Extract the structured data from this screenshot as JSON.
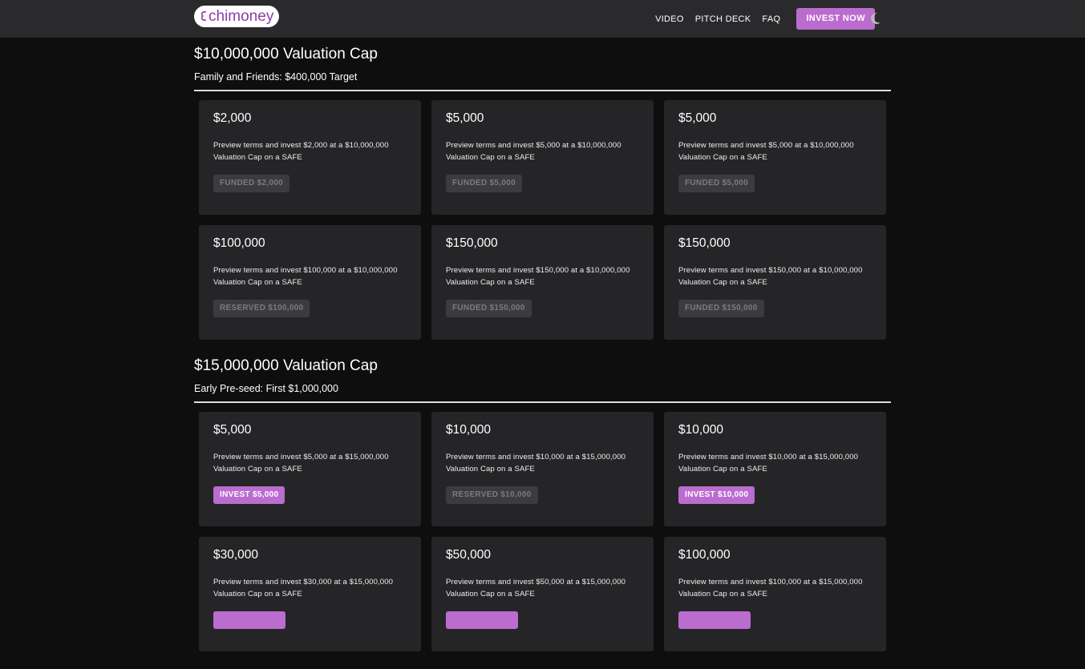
{
  "header": {
    "logo": "chimoney",
    "nav": [
      "VIDEO",
      "PITCH DECK",
      "FAQ"
    ],
    "cta": "INVEST NOW"
  },
  "sections": [
    {
      "title": "$10,000,000 Valuation Cap",
      "subtitle": "Family and Friends: $400,000 Target",
      "cards": [
        {
          "amount": "$2,000",
          "description": "Preview terms and invest $2,000 at a $10,000,000 Valuation Cap on a SAFE",
          "button": "FUNDED $2,000",
          "button_style": "disabled"
        },
        {
          "amount": "$5,000",
          "description": "Preview terms and invest $5,000 at a $10,000,000 Valuation Cap on a SAFE",
          "button": "FUNDED $5,000",
          "button_style": "disabled"
        },
        {
          "amount": "$5,000",
          "description": "Preview terms and invest $5,000 at a $10,000,000 Valuation Cap on a SAFE",
          "button": "FUNDED $5,000",
          "button_style": "disabled"
        },
        {
          "amount": "$100,000",
          "description": "Preview terms and invest $100,000 at a $10,000,000 Valuation Cap on a SAFE",
          "button": "RESERVED $100,000",
          "button_style": "disabled"
        },
        {
          "amount": "$150,000",
          "description": "Preview terms and invest $150,000 at a $10,000,000 Valuation Cap on a SAFE",
          "button": "FUNDED $150,000",
          "button_style": "disabled"
        },
        {
          "amount": "$150,000",
          "description": "Preview terms and invest $150,000 at a $10,000,000 Valuation Cap on a SAFE",
          "button": "FUNDED $150,000",
          "button_style": "disabled"
        }
      ]
    },
    {
      "title": "$15,000,000 Valuation Cap",
      "subtitle": "Early Pre-seed: First $1,000,000",
      "cards": [
        {
          "amount": "$5,000",
          "description": "Preview terms and invest $5,000 at a $15,000,000 Valuation Cap on a SAFE",
          "button": "INVEST $5,000",
          "button_style": "active"
        },
        {
          "amount": "$10,000",
          "description": "Preview terms and invest $10,000 at a $15,000,000 Valuation Cap on a SAFE",
          "button": "RESERVED $10,000",
          "button_style": "disabled"
        },
        {
          "amount": "$10,000",
          "description": "Preview terms and invest $10,000 at a $15,000,000 Valuation Cap on a SAFE",
          "button": "INVEST $10,000",
          "button_style": "active"
        },
        {
          "amount": "$30,000",
          "description": "Preview terms and invest $30,000 at a $15,000,000 Valuation Cap on a SAFE",
          "button_style": "active"
        },
        {
          "amount": "$50,000",
          "description": "Preview terms and invest $50,000 at a $15,000,000 Valuation Cap on a SAFE",
          "button_style": "active"
        },
        {
          "amount": "$100,000",
          "description": "Preview terms and invest $100,000 at a $15,000,000 Valuation Cap on a SAFE",
          "button_style": "active"
        }
      ]
    }
  ]
}
